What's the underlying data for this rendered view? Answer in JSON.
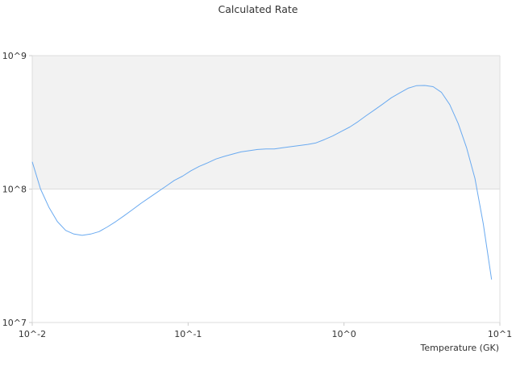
{
  "chart_data": {
    "type": "line",
    "title": "Calculated Rate",
    "xlabel": "Temperature (GK)",
    "ylabel": "",
    "x_scale": "log",
    "y_scale": "log",
    "xlim": [
      0.01,
      10
    ],
    "ylim": [
      10000000,
      1000000000
    ],
    "x_ticks": [
      "10^-2",
      "10^-1",
      "10^0",
      "10^1"
    ],
    "y_ticks": [
      "10^7",
      "10^8",
      "10^9"
    ],
    "grid": false,
    "shaded_band": {
      "y_from": 100000000,
      "y_to": 1000000000,
      "color": "#f2f2f2"
    },
    "colors": {
      "line": "#6aaaf0",
      "band": "#f2f2f2",
      "axis": "#dddddd",
      "text": "#333333"
    },
    "series": [
      {
        "x": [
          0.01,
          0.0113,
          0.0128,
          0.0145,
          0.0164,
          0.0185,
          0.0209,
          0.0237,
          0.0268,
          0.0303,
          0.0343,
          0.0388,
          0.0439,
          0.0497,
          0.0562,
          0.0636,
          0.072,
          0.0814,
          0.0921,
          0.104,
          0.118,
          0.133,
          0.151,
          0.171,
          0.193,
          0.218,
          0.247,
          0.279,
          0.316,
          0.357,
          0.404,
          0.457,
          0.517,
          0.585,
          0.662,
          0.749,
          0.848,
          0.959,
          1.09,
          1.23,
          1.39,
          1.57,
          1.78,
          2.01,
          2.28,
          2.58,
          2.91,
          3.3,
          3.73,
          4.22,
          4.77,
          5.4,
          6.11,
          6.92,
          7.82,
          8.85
        ],
        "values": [
          160000000,
          100000000,
          73000000,
          57000000,
          49000000,
          46000000,
          45000000,
          46000000,
          48000000,
          52000000,
          57000000,
          63000000,
          70000000,
          78000000,
          86000000,
          95000000,
          105000000,
          116000000,
          125000000,
          137000000,
          148000000,
          157000000,
          168000000,
          176000000,
          183000000,
          190000000,
          194000000,
          198000000,
          200000000,
          200000000,
          204000000,
          208000000,
          212000000,
          216000000,
          222000000,
          235000000,
          250000000,
          270000000,
          292000000,
          320000000,
          355000000,
          392000000,
          435000000,
          483000000,
          526000000,
          570000000,
          595000000,
          598000000,
          585000000,
          530000000,
          430000000,
          310000000,
          205000000,
          120000000,
          55000000,
          21000000
        ]
      }
    ]
  }
}
